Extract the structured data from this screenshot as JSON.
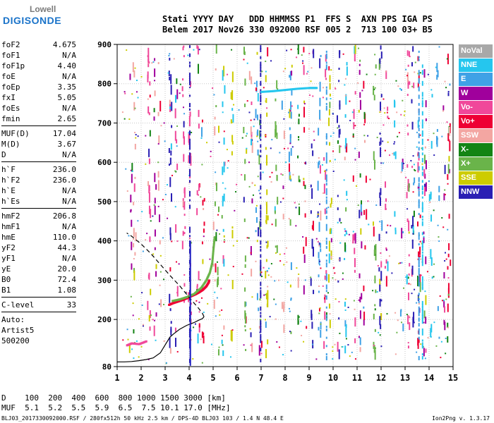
{
  "logo": {
    "line1": "Lowell",
    "line2": "DIGISONDE"
  },
  "header": {
    "line1": "Stati YYYY DAY   DDD HHMMSS P1  FFS S  AXN PPS IGA PS",
    "line2": "Belem 2017 Nov26 330 092000 RSF 005 2  713 100 03+ B5"
  },
  "params": {
    "group1": [
      [
        "foF2",
        "4.675"
      ],
      [
        "foF1",
        "N/A"
      ],
      [
        "foF1p",
        "4.40"
      ],
      [
        "foE",
        "N/A"
      ],
      [
        "foEp",
        "3.35"
      ],
      [
        "fxI",
        "5.05"
      ],
      [
        "foEs",
        "N/A"
      ],
      [
        "fmin",
        "2.65"
      ]
    ],
    "group2": [
      [
        "MUF(D)",
        "17.04"
      ],
      [
        "M(D)",
        "3.67"
      ],
      [
        "D",
        "N/A"
      ]
    ],
    "group3": [
      [
        "h`F",
        "236.0"
      ],
      [
        "h`F2",
        "236.0"
      ],
      [
        "h`E",
        "N/A"
      ],
      [
        "h`Es",
        "N/A"
      ]
    ],
    "group4": [
      [
        "hmF2",
        "206.8"
      ],
      [
        "hmF1",
        "N/A"
      ],
      [
        "hmE",
        "110.0"
      ],
      [
        "yF2",
        "44.3"
      ],
      [
        "yF1",
        "N/A"
      ],
      [
        "yE",
        "20.0"
      ],
      [
        "B0",
        "72.4"
      ],
      [
        "B1",
        "1.08"
      ]
    ],
    "group5": [
      [
        "C-level",
        "33"
      ]
    ],
    "autoscaling": [
      "Auto:",
      "Artist5",
      "500200"
    ]
  },
  "legend": [
    {
      "label": "NoVal",
      "color": "#a8a8a8"
    },
    {
      "label": "NNE",
      "color": "#25c6ee"
    },
    {
      "label": "E",
      "color": "#3fa1e6"
    },
    {
      "label": "W",
      "color": "#a0009c"
    },
    {
      "label": "Vo-",
      "color": "#f0489a"
    },
    {
      "label": "Vo+",
      "color": "#ee0034"
    },
    {
      "label": "SSW",
      "color": "#f3a6a2"
    },
    {
      "label": "X-",
      "color": "#138414"
    },
    {
      "label": "X+",
      "color": "#6ab44a"
    },
    {
      "label": "SSE",
      "color": "#cdcc00"
    },
    {
      "label": "NNW",
      "color": "#2a1fb4"
    }
  ],
  "chart_data": {
    "type": "scatter",
    "title": "",
    "xlabel": "",
    "ylabel": "",
    "xlim": [
      1,
      15
    ],
    "ylim": [
      80,
      900
    ],
    "x_ticks": [
      1,
      2,
      3,
      4,
      5,
      6,
      7,
      8,
      9,
      10,
      11,
      12,
      13,
      14,
      15
    ],
    "y_ticks": [
      80,
      200,
      300,
      400,
      500,
      600,
      700,
      800,
      900
    ],
    "grid": true,
    "series": [
      {
        "name": "Vo+",
        "color": "#ee0034",
        "values": [
          [
            3.15,
            238
          ],
          [
            3.3,
            242
          ],
          [
            3.5,
            246
          ],
          [
            3.7,
            250
          ],
          [
            3.9,
            255
          ],
          [
            4.1,
            261
          ],
          [
            4.25,
            265
          ],
          [
            4.4,
            270
          ],
          [
            4.55,
            276
          ],
          [
            4.7,
            285
          ],
          [
            4.8,
            295
          ],
          [
            4.82,
            300
          ]
        ]
      },
      {
        "name": "X+",
        "color": "#6ab44a",
        "values": [
          [
            3.3,
            248
          ],
          [
            3.6,
            252
          ],
          [
            3.9,
            258
          ],
          [
            4.2,
            266
          ],
          [
            4.5,
            282
          ],
          [
            4.7,
            300
          ],
          [
            4.85,
            320
          ],
          [
            4.95,
            345
          ],
          [
            5.0,
            380
          ],
          [
            5.05,
            410
          ]
        ]
      },
      {
        "name": "Vo-",
        "color": "#f0489a",
        "values": [
          [
            1.4,
            135
          ],
          [
            1.6,
            140
          ],
          [
            1.9,
            138
          ],
          [
            2.2,
            145
          ]
        ]
      },
      {
        "name": "NNE",
        "color": "#25c6ee",
        "values": [
          [
            7.0,
            780
          ],
          [
            7.5,
            782
          ],
          [
            8.0,
            785
          ],
          [
            8.5,
            788
          ],
          [
            9.0,
            790
          ],
          [
            9.3,
            790
          ]
        ]
      }
    ],
    "profile_solid": [
      [
        1.0,
        92
      ],
      [
        1.3,
        92
      ],
      [
        1.6,
        93
      ],
      [
        1.9,
        95
      ],
      [
        2.2,
        98
      ],
      [
        2.5,
        102
      ],
      [
        2.8,
        115
      ],
      [
        3.0,
        135
      ],
      [
        3.2,
        155
      ],
      [
        3.35,
        163
      ],
      [
        3.6,
        175
      ],
      [
        3.9,
        185
      ],
      [
        4.2,
        192
      ],
      [
        4.4,
        198
      ],
      [
        4.55,
        202
      ],
      [
        4.62,
        206.8
      ]
    ],
    "profile_dashed": [
      [
        4.62,
        206.8
      ],
      [
        4.55,
        216
      ],
      [
        4.4,
        228
      ],
      [
        4.2,
        242
      ],
      [
        3.95,
        260
      ],
      [
        3.6,
        286
      ],
      [
        3.2,
        312
      ],
      [
        2.8,
        340
      ],
      [
        2.4,
        368
      ],
      [
        2.0,
        392
      ],
      [
        1.6,
        412
      ],
      [
        1.4,
        420
      ]
    ]
  },
  "dtable": {
    "line1": "D    100  200  400  600  800 1000 1500 3000 [km]",
    "line2": "MUF  5.1  5.2  5.5  5.9  6.5  7.5 10.1 17.0 [MHz]"
  },
  "footer": {
    "left": "BLJ03_2017330092000.RSF / 280fx512h 50 kHz 2.5 km / DPS-4D BLJ03 103 / 1.4 N 48.4 E",
    "right": "Ion2Png v. 1.3.17"
  }
}
